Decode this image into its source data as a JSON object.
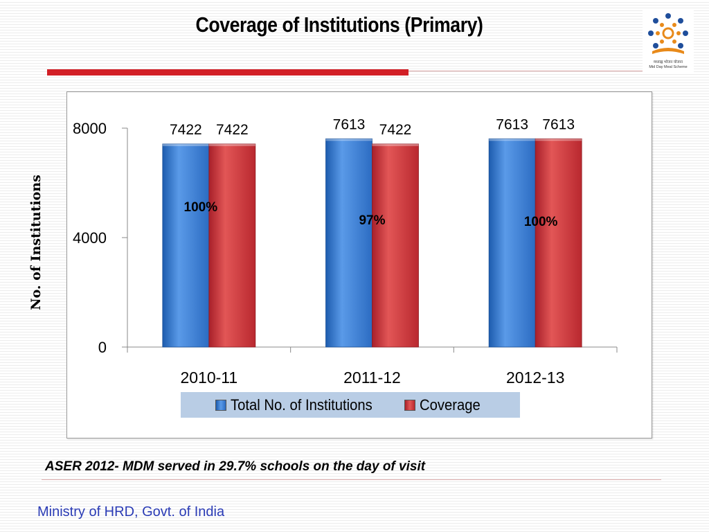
{
  "slide": {
    "title": "Coverage  of Institutions (Primary)",
    "note": "ASER 2012- MDM served in 29.7% schools on the day of visit",
    "footer": "Ministry of HRD, Govt. of India",
    "logo_caption_1": "मध्याह्न भोजन योजना",
    "logo_caption_2": "Mid Day Meal Scheme"
  },
  "chart_data": {
    "type": "bar",
    "title": "",
    "xlabel": "",
    "ylabel": "No. of Institutions",
    "categories": [
      "2010-11",
      "2011-12",
      "2012-13"
    ],
    "ylim": [
      0,
      8000
    ],
    "yticks": [
      "0",
      "4000",
      "8000"
    ],
    "grid": false,
    "legend_position": "bottom",
    "series": [
      {
        "name": "Total No. of Institutions",
        "values": [
          7422,
          7613,
          7613
        ],
        "color": "#3b7fd4",
        "labels": [
          "7422",
          "7613",
          "7613"
        ]
      },
      {
        "name": "Coverage",
        "values": [
          7422,
          7422,
          7613
        ],
        "color": "#d23b3b",
        "labels": [
          "7422",
          "7422",
          "7613"
        ]
      }
    ],
    "annotations": [
      "100%",
      "97%",
      "100%"
    ]
  }
}
